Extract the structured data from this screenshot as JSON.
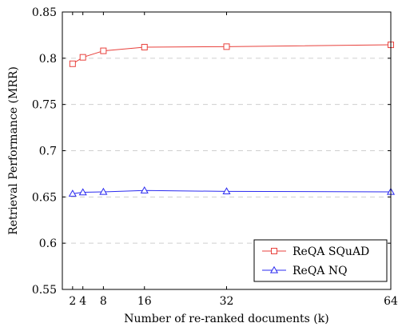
{
  "chart_data": {
    "type": "line",
    "xlabel": "Number of re-ranked documents (k)",
    "ylabel": "Retrieval Performance (MRR)",
    "x_ticks": [
      2,
      4,
      8,
      16,
      32,
      64
    ],
    "x_range": [
      0,
      64
    ],
    "y_ticks": [
      "0.55",
      "0.6",
      "0.65",
      "0.7",
      "0.75",
      "0.8",
      "0.85"
    ],
    "ylim": [
      0.55,
      0.85
    ],
    "grid": "horizontal dashed",
    "legend_position": "bottom-right",
    "series": [
      {
        "name": "ReQA SQuAD",
        "color": "#e8413c",
        "marker": "square",
        "x": [
          2,
          4,
          8,
          16,
          32,
          64
        ],
        "y": [
          0.794,
          0.801,
          0.808,
          0.812,
          0.8125,
          0.8145
        ]
      },
      {
        "name": "ReQA NQ",
        "color": "#2b2bf0",
        "marker": "triangle",
        "x": [
          2,
          4,
          8,
          16,
          32,
          64
        ],
        "y": [
          0.6535,
          0.655,
          0.6555,
          0.657,
          0.656,
          0.6555
        ]
      }
    ]
  }
}
